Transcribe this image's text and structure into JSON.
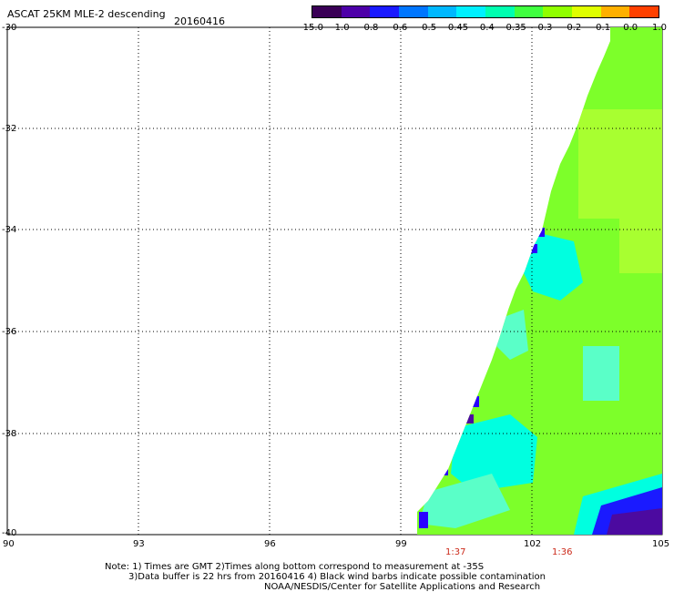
{
  "header": {
    "title": "ASCAT 25KM MLE-2 descending",
    "date": "20160416"
  },
  "colorbar": {
    "tick_labels": [
      "-15.0",
      "-1.0",
      "-0.8",
      "-0.6",
      "-0.5",
      "-0.45",
      "-0.4",
      "-0.35",
      "-0.3",
      "-0.2",
      "-0.1",
      "0.0",
      "1.0"
    ],
    "colors": [
      "#3a0056",
      "#4d00a8",
      "#1a1aff",
      "#0076ff",
      "#00b8ff",
      "#00f0ff",
      "#00ffb0",
      "#40ff40",
      "#90ff00",
      "#e0ff00",
      "#ffb000",
      "#ff4000"
    ]
  },
  "map": {
    "lat_labels": [
      "-30",
      "-32",
      "-34",
      "-36",
      "-38",
      "-40"
    ],
    "lon_labels": [
      "90",
      "93",
      "96",
      "99",
      "102",
      "105"
    ],
    "swath_colors": {
      "main": "#7dff2a",
      "light": "#a8ff30",
      "cyan": "#00ffe0",
      "cyan_light": "#5affc8",
      "blue": "#2a00ff",
      "purple": "#4c0aa0"
    }
  },
  "times": [
    "1:37",
    "1:36"
  ],
  "notes": {
    "line1": "Note: 1) Times are GMT 2)Times along bottom correspond to measurement at -35S",
    "line2": "3)Data buffer is 22 hrs from 20160416 4) Black wind barbs indicate possible contamination",
    "line3": "NOAA/NESDIS/Center for Satellite Applications and Research"
  }
}
